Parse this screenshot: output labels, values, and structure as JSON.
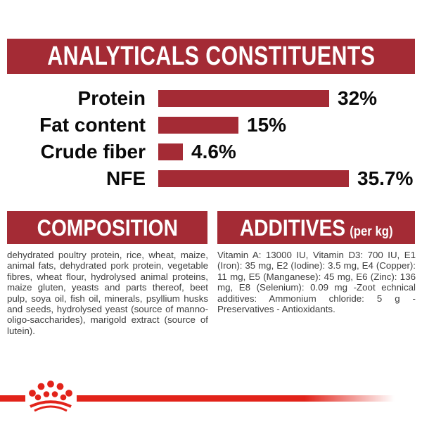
{
  "header": {
    "title": "ANALYTICALS CONSTITUENTS"
  },
  "colors": {
    "dark_red": "#A42B35",
    "bright_red": "#E2231A",
    "body_text": "#3C3C3C",
    "chart_text": "#0A0A0A",
    "background": "#FFFFFF"
  },
  "chart_data": {
    "type": "bar",
    "orientation": "horizontal",
    "title": "ANALYTICALS CONSTITUENTS",
    "categories": [
      "Protein",
      "Fat content",
      "Crude fiber",
      "NFE"
    ],
    "values": [
      32,
      15,
      4.6,
      35.7
    ],
    "value_labels": [
      "32%",
      "15%",
      "4.6%",
      "35.7%"
    ],
    "unit": "%",
    "xlim": [
      0,
      40
    ],
    "bar_color": "#A42B35",
    "grid": false,
    "legend": false,
    "value_label_position": "right-of-bar",
    "category_label_position": "left-of-bar"
  },
  "composition": {
    "heading": "COMPOSITION",
    "body": "dehydrated poultry protein, rice, wheat, maize, animal fats, dehydrated pork protein, vegetable fibres, wheat flour, hydrolysed animal proteins, maize gluten, yeasts and parts thereof, beet pulp, soya oil, fish oil, minerals, psyllium husks and seeds, hydrolysed yeast (source of manno-oligo-saccharides), marigold extract (source of lutein)."
  },
  "additives": {
    "heading": "ADDITIVES",
    "heading_suffix": "(per kg)",
    "body": "Vitamin A: 13000 IU, Vitamin D3: 700 IU, E1 (Iron): 35 mg, E2 (Iodine): 3.5 mg, E4 (Copper): 11 mg, E5 (Manganese): 45 mg, E6 (Zinc): 136 mg, E8 (Selenium): 0.09 mg -Zoot echnical additives: Ammonium chloride: 5 g - Preservatives - Antioxidants."
  },
  "footer": {
    "logo": "royal-canin-crown",
    "line_color": "#E2231A"
  }
}
